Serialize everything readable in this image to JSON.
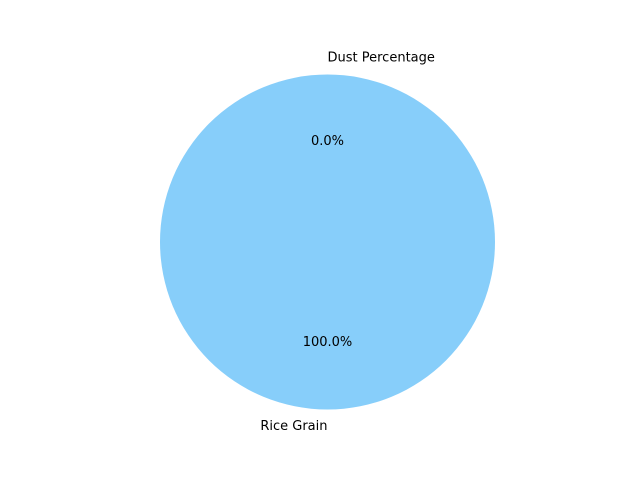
{
  "chart_data": {
    "type": "pie",
    "title": "",
    "slices": [
      {
        "label": "Rice Grain",
        "value": 100.0,
        "pct_label": "100.0%",
        "color": "#87CEFA"
      },
      {
        "label": "Dust Percentage",
        "value": 0.0,
        "pct_label": "0.0%",
        "color": "#FFA07A"
      }
    ],
    "start_angle_deg": 90,
    "counterclockwise": true,
    "legend": "none"
  }
}
